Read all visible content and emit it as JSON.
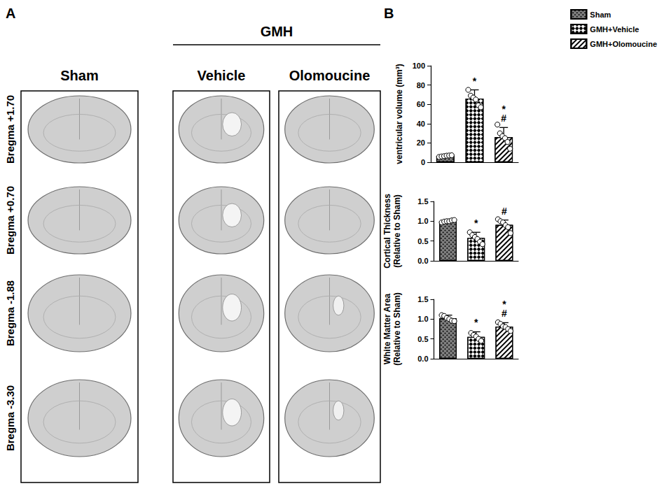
{
  "panel_labels": [
    "A",
    "B"
  ],
  "panel_a": {
    "group_label": "GMH",
    "columns": [
      "Sham",
      "Vehicle",
      "Olomoucine"
    ],
    "rows": [
      "Bregma +1.70",
      "Bregma +0.70",
      "Bregma -1.88",
      "Bregma -3.30"
    ]
  },
  "chart_data": [
    {
      "type": "bar",
      "ylabel": "ventricular volume (mm³)",
      "categories": [
        null,
        null,
        null
      ],
      "ylim": [
        0,
        100
      ],
      "yticks": [
        0,
        20,
        40,
        60,
        80,
        100
      ],
      "grid": false,
      "tick_labels": "y",
      "legend": "upper right",
      "series": [
        {
          "name": "Sham",
          "color": "#808080",
          "values": [
            6.5,
            null,
            null
          ],
          "errors": [
            1.0,
            null,
            null
          ],
          "points": [
            [
              5.5,
              6,
              6.3,
              6.8,
              7,
              7.2
            ],
            null,
            null
          ],
          "significance": [
            [],
            null,
            null
          ]
        },
        {
          "name": "GMH+Vehicle",
          "color": "#ffffff",
          "values": [
            null,
            66,
            null
          ],
          "errors": [
            null,
            9,
            null
          ],
          "points": [
            null,
            [
              75,
              69,
              67,
              65,
              59,
              57
            ],
            null
          ],
          "significance": [
            null,
            [
              "*"
            ],
            null
          ]
        },
        {
          "name": "GMH+Olomoucine",
          "color": "#ffffff",
          "values": [
            null,
            null,
            26
          ],
          "errors": [
            null,
            null,
            10
          ],
          "points": [
            null,
            null,
            [
              39,
              30,
              27,
              25,
              21,
              14
            ]
          ],
          "significance": [
            null,
            null,
            [
              "*",
              "#"
            ]
          ]
        }
      ]
    },
    {
      "type": "bar",
      "ylabel": "Cortical Thickness\n(Relative to Sham)",
      "categories": [
        null,
        null,
        null
      ],
      "ylim": [
        0,
        1.5
      ],
      "yticks": [
        {
          "value": 0,
          "label": "0.0"
        },
        0.5,
        {
          "value": 1,
          "label": "1.0"
        },
        1.5
      ],
      "grid": false,
      "tick_labels": "y",
      "series": [
        {
          "color": "#808080",
          "values": [
            1.0,
            null,
            null
          ],
          "errors": [
            0.03,
            null,
            null
          ],
          "points": [
            [
              0.97,
              0.99,
              1.0,
              1.0,
              1.02,
              1.03
            ],
            null,
            null
          ],
          "significance": [
            [],
            null,
            null
          ]
        },
        {
          "color": "#ffffff",
          "values": [
            null,
            0.58,
            null
          ],
          "errors": [
            null,
            0.14,
            null
          ],
          "points": [
            null,
            [
              0.72,
              0.65,
              0.6,
              0.55,
              0.48,
              0.42
            ],
            null
          ],
          "significance": [
            null,
            [
              "*"
            ],
            null
          ]
        },
        {
          "color": "#ffffff",
          "values": [
            null,
            null,
            0.91
          ],
          "errors": [
            null,
            null,
            0.12
          ],
          "points": [
            null,
            null,
            [
              1.05,
              1.0,
              0.97,
              0.9,
              0.85,
              0.7
            ]
          ],
          "significance": [
            null,
            null,
            [
              "#"
            ]
          ]
        }
      ]
    },
    {
      "type": "bar",
      "ylabel": "White Matter Area\n(Relative to Sham)",
      "categories": [
        null,
        null,
        null
      ],
      "ylim": [
        0,
        1.5
      ],
      "yticks": [
        {
          "value": 0,
          "label": "0.0"
        },
        0.5,
        {
          "value": 1,
          "label": "1.0"
        },
        1.5
      ],
      "grid": false,
      "tick_labels": "y",
      "series": [
        {
          "color": "#808080",
          "values": [
            1.02,
            null,
            null
          ],
          "errors": [
            0.08,
            null,
            null
          ],
          "points": [
            [
              1.1,
              1.08,
              1.03,
              1.0,
              0.96,
              0.95
            ],
            null,
            null
          ],
          "significance": [
            [],
            null,
            null
          ]
        },
        {
          "color": "#ffffff",
          "values": [
            null,
            0.55,
            null
          ],
          "errors": [
            null,
            0.13,
            null
          ],
          "points": [
            null,
            [
              0.65,
              0.6,
              0.56,
              0.5,
              0.45
            ],
            null
          ],
          "significance": [
            null,
            [
              "*"
            ],
            null
          ]
        },
        {
          "color": "#ffffff",
          "values": [
            null,
            null,
            0.81
          ],
          "errors": [
            null,
            null,
            0.1
          ],
          "points": [
            null,
            null,
            [
              0.92,
              0.88,
              0.82,
              0.8,
              0.75,
              0.7
            ]
          ],
          "significance": [
            null,
            null,
            [
              "*",
              "#"
            ]
          ]
        }
      ]
    }
  ]
}
